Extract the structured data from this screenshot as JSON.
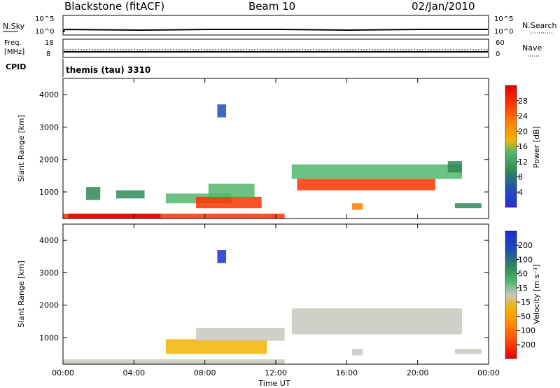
{
  "header": {
    "station": "Blackstone (fitACF)",
    "beam": "Beam 10",
    "date": "02/Jan/2010"
  },
  "noise_panel": {
    "left_label": "N.Sky",
    "right_label": "N.Search",
    "left_ticks": [
      "10^5",
      "10^0"
    ],
    "right_ticks": [
      "10^5",
      "10^0"
    ]
  },
  "freq_panel": {
    "left_label_1": "Freq.",
    "left_label_2": "[MHz]",
    "right_label": "Nave",
    "left_ticks": [
      "18",
      "8"
    ],
    "right_ticks": [
      "60",
      "0"
    ]
  },
  "cpid": {
    "label": "CPID",
    "value": "themis (tau) 3310"
  },
  "colors": {
    "power_scale": [
      "#2b2bd9",
      "#1f4fb4",
      "#2e8a57",
      "#53b66d",
      "#f2b400",
      "#ff7f00",
      "#ff3300",
      "#e60000"
    ],
    "velocity_scale": [
      "#1a2fd0",
      "#1f4fb4",
      "#2e8a57",
      "#53b66d",
      "#c8c8c0",
      "#f2b400",
      "#ff8c00",
      "#ff5000",
      "#e60000"
    ]
  },
  "chart_data": [
    {
      "type": "heatmap",
      "panel": "power",
      "ylabel": "Slant Range [km]",
      "yticks": [
        "4000",
        "3000",
        "2000",
        "1000"
      ],
      "ylim": [
        180,
        4500
      ],
      "xlim": [
        0,
        24
      ],
      "colorbar": {
        "label": "Power [dB]",
        "ticks": [
          "28",
          "24",
          "20",
          "16",
          "12",
          "8",
          "4"
        ],
        "range": [
          0,
          32
        ]
      },
      "regions": [
        {
          "t0": 0.0,
          "t1": 12.5,
          "r0": 180,
          "r1": 330,
          "value": 24
        },
        {
          "t0": 0.3,
          "t1": 5.5,
          "r0": 200,
          "r1": 330,
          "value": 28
        },
        {
          "t0": 1.3,
          "t1": 2.1,
          "r0": 750,
          "r1": 1150,
          "value": 8
        },
        {
          "t0": 3.0,
          "t1": 4.6,
          "r0": 800,
          "r1": 1050,
          "value": 8
        },
        {
          "t0": 5.8,
          "t1": 9.5,
          "r0": 650,
          "r1": 950,
          "value": 14
        },
        {
          "t0": 7.5,
          "t1": 11.2,
          "r0": 500,
          "r1": 850,
          "value": 24
        },
        {
          "t0": 8.2,
          "t1": 10.8,
          "r0": 850,
          "r1": 1250,
          "value": 14
        },
        {
          "t0": 8.7,
          "t1": 9.2,
          "r0": 3300,
          "r1": 3700,
          "value": 6
        },
        {
          "t0": 12.9,
          "t1": 22.5,
          "r0": 1400,
          "r1": 1850,
          "value": 12
        },
        {
          "t0": 13.2,
          "t1": 21.0,
          "r0": 1050,
          "r1": 1400,
          "value": 24
        },
        {
          "t0": 16.3,
          "t1": 16.9,
          "r0": 450,
          "r1": 650,
          "value": 20
        },
        {
          "t0": 21.7,
          "t1": 22.5,
          "r0": 1600,
          "r1": 1950,
          "value": 8
        },
        {
          "t0": 22.1,
          "t1": 23.6,
          "r0": 500,
          "r1": 650,
          "value": 10
        }
      ]
    },
    {
      "type": "heatmap",
      "panel": "velocity",
      "ylabel": "Slant Range [km]",
      "yticks": [
        "4000",
        "3000",
        "2000",
        "1000"
      ],
      "ylim": [
        180,
        4500
      ],
      "xlim": [
        0,
        24
      ],
      "xticks": [
        "00:00",
        "04:00",
        "08:00",
        "12:00",
        "16:00",
        "20:00",
        "00:00"
      ],
      "xlabel": "Time UT",
      "colorbar": {
        "label": "Velocity [m s⁻¹]",
        "ticks": [
          "200",
          "100",
          "50",
          "15",
          "-15",
          "-50",
          "-100",
          "-200"
        ],
        "range": [
          -250,
          250
        ]
      },
      "regions": [
        {
          "t0": 0.0,
          "t1": 12.5,
          "r0": 180,
          "r1": 330,
          "value": 0
        },
        {
          "t0": 5.8,
          "t1": 11.5,
          "r0": 500,
          "r1": 950,
          "value": -40
        },
        {
          "t0": 7.5,
          "t1": 12.5,
          "r0": 900,
          "r1": 1300,
          "value": 0
        },
        {
          "t0": 8.7,
          "t1": 9.2,
          "r0": 3300,
          "r1": 3700,
          "value": 180
        },
        {
          "t0": 12.9,
          "t1": 22.5,
          "r0": 1100,
          "r1": 1900,
          "value": 0
        },
        {
          "t0": 16.3,
          "t1": 16.9,
          "r0": 450,
          "r1": 650,
          "value": 0
        },
        {
          "t0": 22.1,
          "t1": 23.6,
          "r0": 500,
          "r1": 650,
          "value": 0
        }
      ]
    }
  ]
}
